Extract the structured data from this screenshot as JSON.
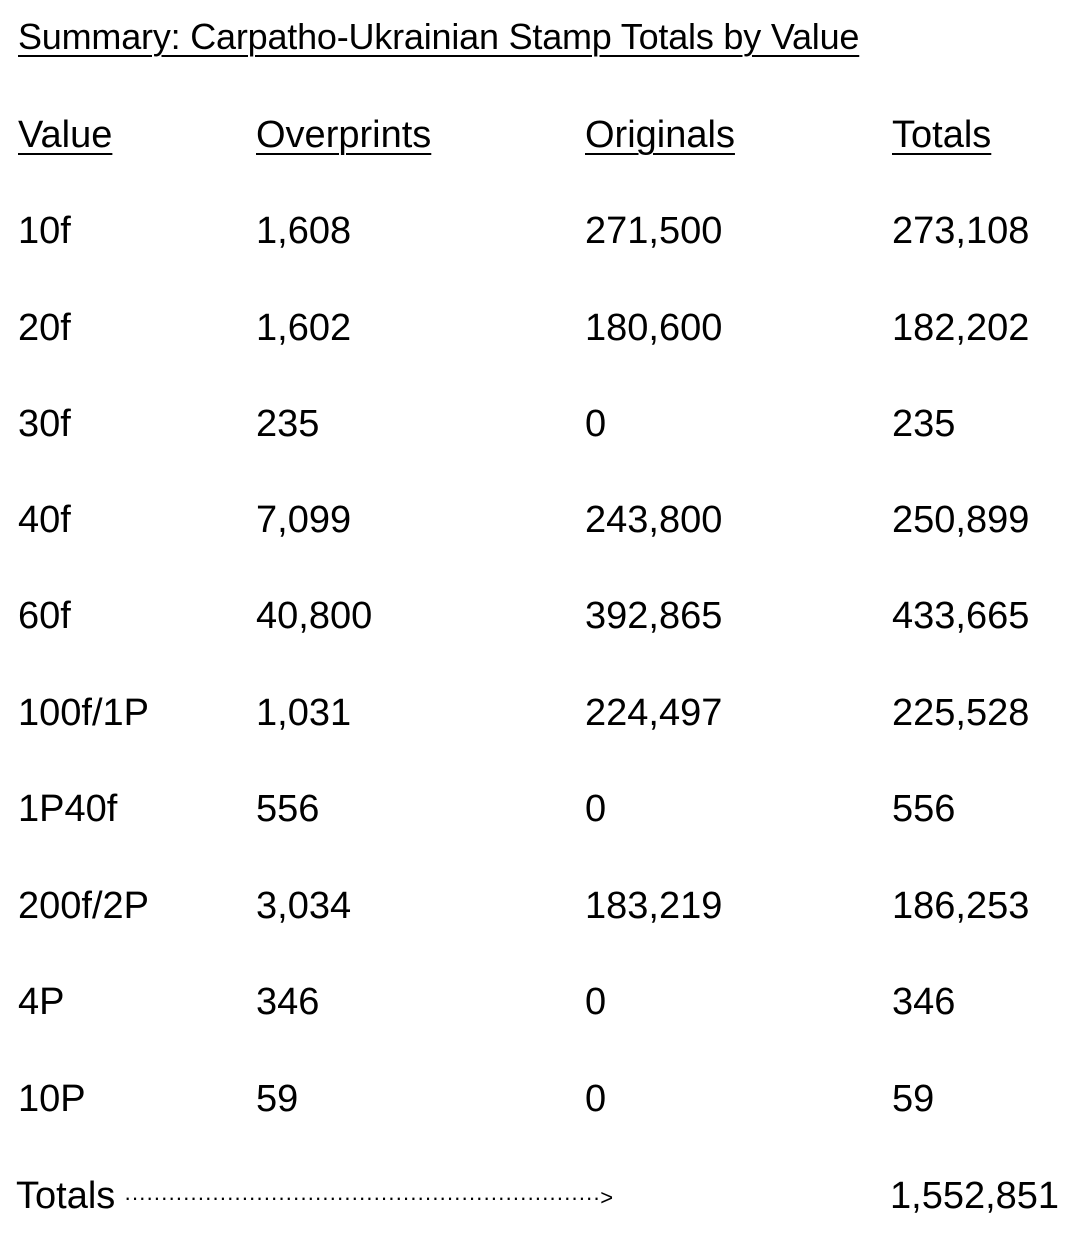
{
  "title": "Summary: Carpatho-Ukrainian Stamp Totals by Value",
  "columns": {
    "value": "Value",
    "overprints": "Overprints",
    "originals": "Originals",
    "totals": "Totals"
  },
  "rows": [
    {
      "value": "10f",
      "overprints": "1,608",
      "originals": "271,500",
      "totals": "273,108"
    },
    {
      "value": "20f",
      "overprints": "1,602",
      "originals": "180,600",
      "totals": "182,202"
    },
    {
      "value": "30f",
      "overprints": "235",
      "originals": "0",
      "totals": "235"
    },
    {
      "value": "40f",
      "overprints": "7,099",
      "originals": "243,800",
      "totals": "250,899"
    },
    {
      "value": "60f",
      "overprints": "40,800",
      "originals": "392,865",
      "totals": "433,665"
    },
    {
      "value": "100f/1P",
      "overprints": "1,031",
      "originals": "224,497",
      "totals": "225,528"
    },
    {
      "value": "1P40f",
      "overprints": "556",
      "originals": "0",
      "totals": "556"
    },
    {
      "value": "200f/2P",
      "overprints": "3,034",
      "originals": "183,219",
      "totals": "186,253"
    },
    {
      "value": "4P",
      "overprints": "346",
      "originals": "0",
      "totals": "346"
    },
    {
      "value": "10P",
      "overprints": "59",
      "originals": "0",
      "totals": "59"
    }
  ],
  "totals_row": {
    "label": "Totals",
    "leader": "·································································>",
    "grand_total": "1,552,851"
  }
}
